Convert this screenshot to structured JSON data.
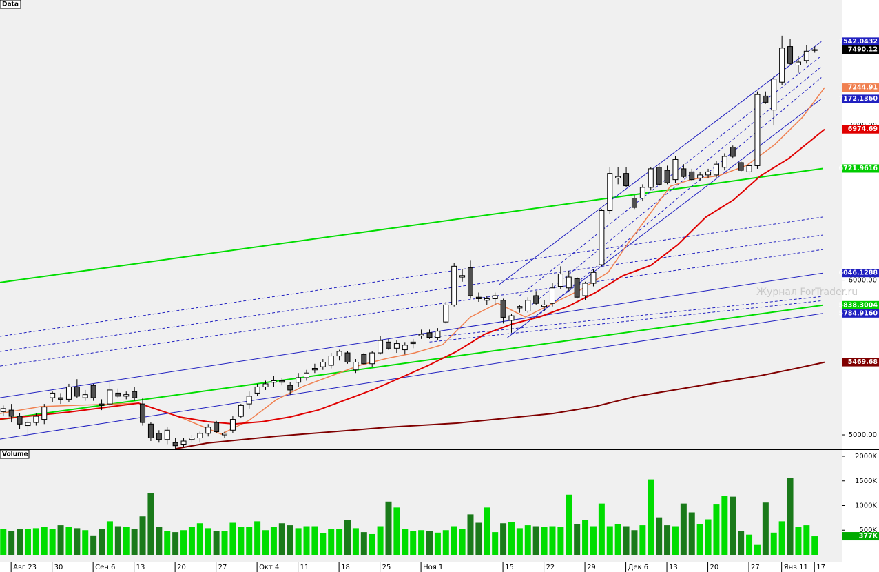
{
  "chart_data": [
    {
      "type": "candlestick",
      "title": "Data",
      "open": [
        5150,
        5160,
        5120,
        5060,
        5080,
        5100,
        5240,
        5240,
        5230,
        5310,
        5240,
        5320,
        5200,
        5200,
        5270,
        5250,
        5280,
        5200,
        5070,
        5010,
        4970,
        4950,
        4940,
        4970,
        4980,
        5010,
        5080,
        5000,
        5030,
        5120,
        5200,
        5270,
        5310,
        5340,
        5350,
        5320,
        5340,
        5370,
        5420,
        5440,
        5450,
        5510,
        5530,
        5420,
        5520,
        5460,
        5530,
        5600,
        5560,
        5550,
        5590,
        5640,
        5660,
        5630,
        5730,
        5840,
        6020,
        6080,
        5890,
        5870,
        5880,
        5870,
        5740,
        5820,
        5800,
        5900,
        5830,
        5850,
        5960,
        5950,
        6010,
        5900,
        5980,
        6100,
        6450,
        6660,
        6690,
        6530,
        6530,
        6600,
        6730,
        6710,
        6650,
        6720,
        6700,
        6660,
        6680,
        6680,
        6730,
        6860,
        6760,
        6700,
        6740,
        7190,
        7100,
        7280,
        7510,
        7390,
        7420,
        7485
      ],
      "high": [
        5190,
        5200,
        5140,
        5100,
        5140,
        5200,
        5280,
        5270,
        5330,
        5360,
        5290,
        5330,
        5230,
        5340,
        5300,
        5280,
        5310,
        5240,
        5080,
        5030,
        5050,
        4980,
        4980,
        5000,
        5020,
        5070,
        5090,
        5020,
        5120,
        5200,
        5280,
        5330,
        5350,
        5380,
        5370,
        5340,
        5400,
        5420,
        5460,
        5490,
        5530,
        5550,
        5540,
        5490,
        5530,
        5540,
        5640,
        5620,
        5610,
        5600,
        5620,
        5680,
        5680,
        5690,
        5860,
        6110,
        6070,
        6130,
        5920,
        5900,
        5920,
        5880,
        5780,
        5840,
        5890,
        5930,
        5870,
        5980,
        6090,
        6060,
        6020,
        5990,
        6070,
        6460,
        6730,
        6730,
        6730,
        6550,
        6620,
        6730,
        6750,
        6740,
        6800,
        6750,
        6720,
        6700,
        6720,
        6770,
        6820,
        6870,
        6770,
        6760,
        7220,
        7220,
        7320,
        7580,
        7560,
        7450,
        7520,
        7510
      ],
      "low": [
        5120,
        5080,
        5040,
        4990,
        5060,
        5070,
        5210,
        5200,
        5210,
        5240,
        5220,
        5220,
        5160,
        5170,
        5240,
        5230,
        5220,
        5060,
        4960,
        4950,
        4940,
        4910,
        4920,
        4950,
        4950,
        4990,
        5010,
        4980,
        5010,
        5110,
        5170,
        5250,
        5290,
        5310,
        5320,
        5260,
        5310,
        5350,
        5400,
        5420,
        5430,
        5480,
        5460,
        5400,
        5450,
        5440,
        5520,
        5550,
        5530,
        5520,
        5560,
        5620,
        5620,
        5610,
        5720,
        5830,
        5990,
        5880,
        5860,
        5840,
        5840,
        5720,
        5660,
        5790,
        5790,
        5840,
        5800,
        5830,
        5940,
        5930,
        5880,
        5870,
        5960,
        6090,
        6430,
        6620,
        6600,
        6460,
        6510,
        6580,
        6610,
        6620,
        6630,
        6660,
        6640,
        6640,
        6660,
        6660,
        6710,
        6790,
        6700,
        6680,
        6720,
        7140,
        7000,
        7260,
        7390,
        7340,
        7400,
        7470
      ],
      "close": [
        5170,
        5120,
        5070,
        5080,
        5120,
        5180,
        5270,
        5230,
        5310,
        5250,
        5260,
        5240,
        5190,
        5290,
        5250,
        5260,
        5240,
        5080,
        4980,
        4970,
        5030,
        4930,
        4960,
        4980,
        5010,
        5050,
        5020,
        5010,
        5100,
        5190,
        5250,
        5310,
        5330,
        5350,
        5340,
        5290,
        5370,
        5400,
        5430,
        5470,
        5510,
        5540,
        5470,
        5470,
        5460,
        5530,
        5610,
        5560,
        5590,
        5580,
        5600,
        5650,
        5630,
        5670,
        5840,
        6090,
        6030,
        5900,
        5880,
        5880,
        5900,
        5760,
        5770,
        5830,
        5870,
        5850,
        5840,
        5950,
        6040,
        6020,
        5890,
        5980,
        6050,
        6450,
        6690,
        6670,
        6610,
        6470,
        6600,
        6720,
        6620,
        6630,
        6780,
        6670,
        6650,
        6680,
        6700,
        6750,
        6800,
        6800,
        6710,
        6740,
        7200,
        7150,
        7300,
        7500,
        7400,
        7410,
        7480,
        7490.12
      ],
      "up_color": "#ffffff",
      "down_color": "#505050",
      "wick_color": "#000000",
      "xlim": [
        -0.4,
        102.3
      ],
      "ylim": [
        4911,
        7811
      ],
      "yticks": [
        {
          "value": 5000,
          "label": "5000.00"
        },
        {
          "value": 6000,
          "label": "6000.00"
        },
        {
          "value": 7000,
          "label": "7000.00"
        }
      ],
      "x_labels": [
        {
          "label": "Авг 23",
          "index": 1
        },
        {
          "label": "30",
          "index": 6
        },
        {
          "label": "Сен 6",
          "index": 11
        },
        {
          "label": "13",
          "index": 16
        },
        {
          "label": "20",
          "index": 21
        },
        {
          "label": "27",
          "index": 26
        },
        {
          "label": "Окт 4",
          "index": 31
        },
        {
          "label": "11",
          "index": 36
        },
        {
          "label": "18",
          "index": 41
        },
        {
          "label": "25",
          "index": 46
        },
        {
          "label": "Ноя 1",
          "index": 51
        },
        {
          "label": "15",
          "index": 61
        },
        {
          "label": "22",
          "index": 66
        },
        {
          "label": "29",
          "index": 71
        },
        {
          "label": "Дек 6",
          "index": 76
        },
        {
          "label": "13",
          "index": 81
        },
        {
          "label": "20",
          "index": 86
        },
        {
          "label": "27",
          "index": 91
        },
        {
          "label": "Янв 11",
          "index": 95
        },
        {
          "label": "17",
          "index": 99
        }
      ],
      "lines": [
        {
          "color": "#00dd00",
          "width": 2,
          "dash": false,
          "x": [
            -0.4,
            100
          ],
          "values": [
            5985,
            6721.9616
          ]
        },
        {
          "color": "#00dd00",
          "width": 2,
          "dash": false,
          "x": [
            -0.4,
            100
          ],
          "values": [
            5100,
            5838.3004
          ]
        },
        {
          "color": "#2020c0",
          "width": 1,
          "dash": false,
          "x": [
            -0.4,
            100
          ],
          "values": [
            5240,
            6046.1288
          ]
        },
        {
          "color": "#2020c0",
          "width": 1,
          "dash": false,
          "x": [
            -0.4,
            100
          ],
          "values": [
            4973,
            5784.916
          ]
        },
        {
          "color": "#2020c0",
          "width": 1,
          "dash": true,
          "x": [
            -0.4,
            100
          ],
          "values": [
            5637,
            6408
          ]
        },
        {
          "color": "#2020c0",
          "width": 1,
          "dash": true,
          "x": [
            -0.4,
            100
          ],
          "values": [
            5539,
            6292
          ]
        },
        {
          "color": "#2020c0",
          "width": 1,
          "dash": true,
          "x": [
            -0.4,
            100
          ],
          "values": [
            5445,
            6198
          ]
        },
        {
          "color": "#2020c0",
          "width": 1,
          "dash": true,
          "x": [
            52,
            100
          ],
          "values": [
            5630,
            5895
          ]
        },
        {
          "color": "#2020c0",
          "width": 1,
          "dash": true,
          "x": [
            52,
            100
          ],
          "values": [
            5600,
            5868
          ]
        },
        {
          "color": "#2020c0",
          "width": 1,
          "dash": false,
          "x": [
            60.5,
            99.8
          ],
          "values": [
            5971,
            7542.0432
          ]
        },
        {
          "color": "#2020c0",
          "width": 1,
          "dash": false,
          "x": [
            61.5,
            99.8
          ],
          "values": [
            5628,
            7172.136
          ]
        },
        {
          "color": "#2020c0",
          "width": 1,
          "dash": true,
          "x": [
            63,
            99.8
          ],
          "values": [
            5900,
            7450
          ]
        },
        {
          "color": "#2020c0",
          "width": 1,
          "dash": true,
          "x": [
            64,
            99.8
          ],
          "values": [
            5820,
            7380
          ]
        },
        {
          "color": "#2020c0",
          "width": 1,
          "dash": true,
          "x": [
            65,
            99.8
          ],
          "values": [
            5760,
            7310
          ]
        },
        {
          "color": "#f08050",
          "width": 1.5,
          "dash": false,
          "x": [
            -0.4,
            4.6,
            16.5,
            21.5,
            26.6,
            30,
            33.3,
            36.7,
            40.1,
            43.5,
            46.8,
            50.2,
            53.6,
            57,
            60.3,
            63.7,
            67.1,
            70.5,
            73.8,
            76.4,
            78.9,
            81.4,
            84,
            87.3,
            90.7,
            94.1,
            97.5,
            100.2
          ],
          "values": [
            5138,
            5183,
            5205,
            5116,
            5004,
            5094,
            5227,
            5316,
            5383,
            5450,
            5494,
            5530,
            5583,
            5762,
            5851,
            5762,
            5851,
            5940,
            6051,
            6252,
            6430,
            6608,
            6652,
            6675,
            6742,
            6875,
            7053,
            7244.91
          ]
        },
        {
          "color": "#e00000",
          "width": 2,
          "dash": false,
          "x": [
            -0.4,
            8,
            16.5,
            21.5,
            24.9,
            28.2,
            31.6,
            35,
            38.4,
            41.8,
            45.2,
            48.5,
            51.9,
            55.3,
            58.7,
            62.1,
            65.4,
            68.8,
            72.2,
            75.6,
            79,
            82.3,
            85.7,
            89.1,
            92.4,
            95.8,
            100.2
          ],
          "values": [
            5102,
            5147,
            5205,
            5116,
            5085,
            5071,
            5085,
            5116,
            5160,
            5227,
            5294,
            5370,
            5450,
            5539,
            5650,
            5717,
            5762,
            5828,
            5918,
            6029,
            6096,
            6229,
            6407,
            6519,
            6675,
            6786,
            6974.69
          ]
        },
        {
          "color": "#800000",
          "width": 2,
          "dash": false,
          "x": [
            21.1,
            24.9,
            33.3,
            41.8,
            46.8,
            55.3,
            60.3,
            67.1,
            72.2,
            77.2,
            82.3,
            87.3,
            92.4,
            96.6,
            100.2
          ],
          "values": [
            4911,
            4947,
            4991,
            5027,
            5049,
            5076,
            5102,
            5138,
            5183,
            5249,
            5294,
            5339,
            5383,
            5428,
            5469.68
          ]
        }
      ],
      "price_markers": [
        {
          "value": 7542.0432,
          "label": "7542.0432",
          "bg": "#2020c0",
          "fg": "#ffffff"
        },
        {
          "value": 7490.12,
          "label": "7490.12",
          "bg": "#000000",
          "fg": "#ffffff"
        },
        {
          "value": 7244.91,
          "label": "7244.91",
          "bg": "#f08050",
          "fg": "#ffffff"
        },
        {
          "value": 7172.136,
          "label": "7172.1360",
          "bg": "#2020c0",
          "fg": "#ffffff"
        },
        {
          "value": 6974.69,
          "label": "6974.69",
          "bg": "#e00000",
          "fg": "#ffffff"
        },
        {
          "value": 6721.9616,
          "label": "6721.9616",
          "bg": "#00cc00",
          "fg": "#ffffff"
        },
        {
          "value": 6046.1288,
          "label": "6046.1288",
          "bg": "#2020c0",
          "fg": "#ffffff"
        },
        {
          "value": 5838.3004,
          "label": "5838.3004",
          "bg": "#00cc00",
          "fg": "#ffffff"
        },
        {
          "value": 5784.916,
          "label": "5784.9160",
          "bg": "#2020c0",
          "fg": "#ffffff"
        },
        {
          "value": 5469.68,
          "label": "5469.68",
          "bg": "#800000",
          "fg": "#ffffff"
        }
      ],
      "watermark": "Журнал ForTrader.ru"
    },
    {
      "type": "bar",
      "title": "Volume",
      "values": [
        520,
        480,
        530,
        520,
        540,
        560,
        520,
        600,
        560,
        540,
        500,
        380,
        520,
        680,
        580,
        560,
        520,
        780,
        1250,
        560,
        480,
        460,
        500,
        560,
        640,
        540,
        480,
        480,
        650,
        560,
        560,
        680,
        500,
        560,
        640,
        600,
        540,
        580,
        580,
        440,
        520,
        520,
        700,
        540,
        460,
        420,
        580,
        1080,
        960,
        520,
        480,
        500,
        480,
        450,
        500,
        580,
        520,
        820,
        650,
        960,
        460,
        640,
        660,
        540,
        600,
        580,
        560,
        580,
        570,
        1220,
        620,
        700,
        580,
        1040,
        580,
        620,
        580,
        500,
        600,
        1530,
        760,
        600,
        580,
        1040,
        860,
        620,
        720,
        1020,
        1200,
        1180,
        480,
        410,
        200,
        1060,
        450,
        680,
        1560,
        560,
        600,
        377
      ],
      "up_color": "#00dd00",
      "down_color": "#1a7a1a",
      "ylim": [
        -140,
        2140
      ],
      "yticks": [
        {
          "value": 500,
          "label": "500K"
        },
        {
          "value": 1000,
          "label": "1000K"
        },
        {
          "value": 1500,
          "label": "1500K"
        },
        {
          "value": 2000,
          "label": "2000K"
        }
      ],
      "price_markers": [
        {
          "value": 377,
          "label": "377K",
          "bg": "#00aa00",
          "fg": "#ffffff"
        }
      ]
    }
  ]
}
